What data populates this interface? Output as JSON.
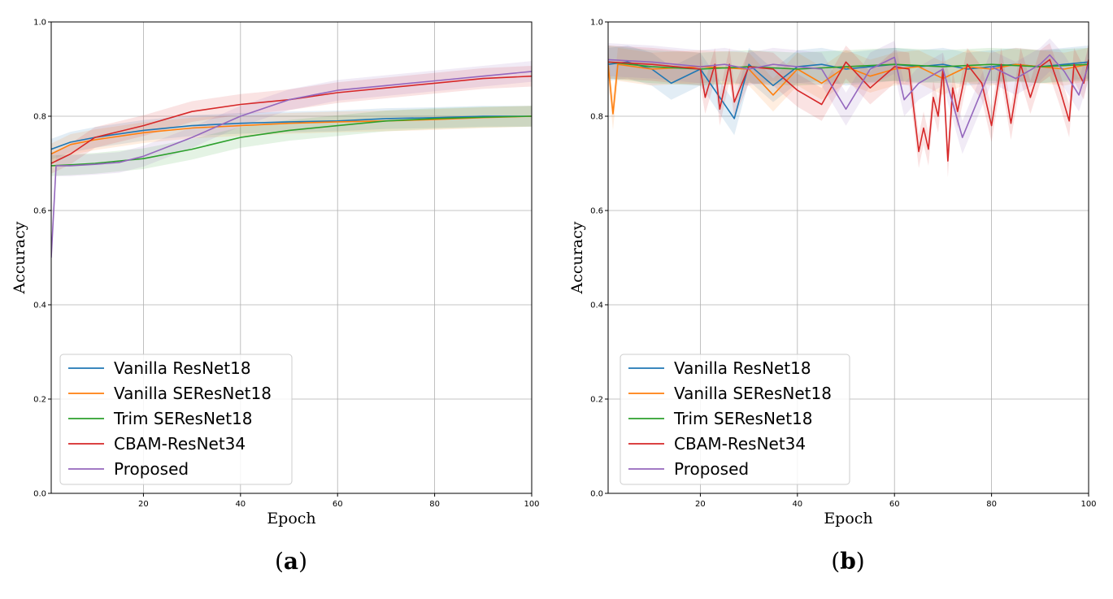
{
  "chart_data": [
    {
      "id": "a",
      "type": "line",
      "caption_open": "(",
      "caption_letter": "a",
      "caption_close": ")",
      "xlabel": "Epoch",
      "ylabel": "Accuracy",
      "xlim": [
        1,
        100
      ],
      "ylim": [
        0.0,
        1.0
      ],
      "xticks": [
        20,
        40,
        60,
        80,
        100
      ],
      "yticks": [
        0.0,
        0.2,
        0.4,
        0.6,
        0.8,
        1.0
      ],
      "ytick_labels": [
        "0.0",
        "0.2",
        "0.4",
        "0.6",
        "0.8",
        "1.0"
      ],
      "grid": true,
      "legend_position": "lower-left",
      "series": [
        {
          "name": "Vanilla ResNet18",
          "color": "#1f77b4",
          "x": [
            1,
            5,
            10,
            20,
            30,
            40,
            50,
            60,
            70,
            80,
            90,
            100
          ],
          "values": [
            0.73,
            0.745,
            0.755,
            0.77,
            0.78,
            0.785,
            0.788,
            0.79,
            0.795,
            0.797,
            0.8,
            0.8
          ]
        },
        {
          "name": "Vanilla SEResNet18",
          "color": "#ff7f0e",
          "x": [
            1,
            5,
            10,
            20,
            30,
            40,
            50,
            60,
            70,
            80,
            90,
            100
          ],
          "values": [
            0.72,
            0.74,
            0.75,
            0.765,
            0.775,
            0.78,
            0.785,
            0.788,
            0.79,
            0.793,
            0.797,
            0.8
          ]
        },
        {
          "name": "Trim SEResNet18",
          "color": "#2ca02c",
          "x": [
            1,
            5,
            10,
            20,
            30,
            40,
            50,
            60,
            70,
            80,
            90,
            100
          ],
          "values": [
            0.695,
            0.697,
            0.7,
            0.71,
            0.73,
            0.755,
            0.77,
            0.78,
            0.79,
            0.795,
            0.798,
            0.8
          ]
        },
        {
          "name": "CBAM-ResNet34",
          "color": "#d62728",
          "x": [
            1,
            5,
            10,
            20,
            30,
            40,
            50,
            60,
            70,
            80,
            90,
            100
          ],
          "values": [
            0.7,
            0.72,
            0.755,
            0.78,
            0.81,
            0.825,
            0.835,
            0.85,
            0.86,
            0.87,
            0.88,
            0.885
          ]
        },
        {
          "name": "Proposed",
          "color": "#9467bd",
          "x": [
            1,
            2,
            5,
            10,
            15,
            20,
            30,
            40,
            50,
            60,
            70,
            80,
            90,
            100
          ],
          "values": [
            0.5,
            0.695,
            0.695,
            0.698,
            0.702,
            0.715,
            0.755,
            0.8,
            0.835,
            0.855,
            0.865,
            0.875,
            0.885,
            0.895
          ]
        }
      ]
    },
    {
      "id": "b",
      "type": "line",
      "caption_open": "(",
      "caption_letter": "b",
      "caption_close": ")",
      "xlabel": "Epoch",
      "ylabel": "Accuracy",
      "xlim": [
        1,
        100
      ],
      "ylim": [
        0.0,
        1.0
      ],
      "xticks": [
        20,
        40,
        60,
        80,
        100
      ],
      "yticks": [
        0.0,
        0.2,
        0.4,
        0.6,
        0.8,
        1.0
      ],
      "ytick_labels": [
        "0.0",
        "0.2",
        "0.4",
        "0.6",
        "0.8",
        "1.0"
      ],
      "grid": true,
      "legend_position": "lower-left",
      "series": [
        {
          "name": "Vanilla ResNet18",
          "color": "#1f77b4",
          "x": [
            1,
            5,
            10,
            14,
            20,
            27,
            30,
            35,
            40,
            45,
            50,
            55,
            60,
            65,
            70,
            75,
            80,
            85,
            90,
            95,
            100
          ],
          "values": [
            0.91,
            0.915,
            0.9,
            0.87,
            0.9,
            0.795,
            0.91,
            0.865,
            0.905,
            0.91,
            0.9,
            0.905,
            0.91,
            0.905,
            0.91,
            0.9,
            0.905,
            0.91,
            0.905,
            0.91,
            0.915
          ]
        },
        {
          "name": "Vanilla SEResNet18",
          "color": "#ff7f0e",
          "x": [
            1,
            2,
            3,
            10,
            20,
            30,
            35,
            40,
            45,
            50,
            55,
            60,
            65,
            70,
            75,
            80,
            85,
            90,
            95,
            100
          ],
          "values": [
            0.91,
            0.805,
            0.91,
            0.9,
            0.905,
            0.9,
            0.845,
            0.9,
            0.87,
            0.905,
            0.885,
            0.9,
            0.905,
            0.88,
            0.905,
            0.9,
            0.91,
            0.905,
            0.9,
            0.91
          ]
        },
        {
          "name": "Trim SEResNet18",
          "color": "#2ca02c",
          "x": [
            1,
            10,
            20,
            30,
            40,
            50,
            60,
            70,
            80,
            90,
            100
          ],
          "values": [
            0.915,
            0.905,
            0.9,
            0.905,
            0.9,
            0.905,
            0.91,
            0.905,
            0.91,
            0.905,
            0.91
          ]
        },
        {
          "name": "CBAM-ResNet34",
          "color": "#d62728",
          "x": [
            1,
            10,
            20,
            21,
            23,
            24,
            26,
            27,
            30,
            35,
            40,
            45,
            50,
            55,
            60,
            63,
            65,
            66,
            67,
            68,
            69,
            70,
            71,
            72,
            73,
            75,
            78,
            80,
            82,
            84,
            86,
            88,
            90,
            92,
            94,
            96,
            97,
            99,
            100
          ],
          "values": [
            0.915,
            0.91,
            0.9,
            0.84,
            0.91,
            0.815,
            0.91,
            0.83,
            0.905,
            0.9,
            0.855,
            0.825,
            0.915,
            0.86,
            0.905,
            0.9,
            0.725,
            0.775,
            0.73,
            0.84,
            0.8,
            0.9,
            0.705,
            0.86,
            0.81,
            0.91,
            0.87,
            0.78,
            0.91,
            0.785,
            0.91,
            0.84,
            0.905,
            0.92,
            0.86,
            0.79,
            0.91,
            0.87,
            0.92
          ]
        },
        {
          "name": "Proposed",
          "color": "#9467bd",
          "x": [
            1,
            10,
            20,
            25,
            30,
            35,
            40,
            45,
            50,
            55,
            60,
            62,
            65,
            70,
            74,
            80,
            85,
            90,
            92,
            95,
            98,
            100
          ],
          "values": [
            0.92,
            0.915,
            0.905,
            0.91,
            0.9,
            0.91,
            0.905,
            0.9,
            0.815,
            0.9,
            0.925,
            0.835,
            0.87,
            0.9,
            0.755,
            0.905,
            0.88,
            0.91,
            0.93,
            0.895,
            0.845,
            0.91
          ]
        }
      ]
    }
  ]
}
